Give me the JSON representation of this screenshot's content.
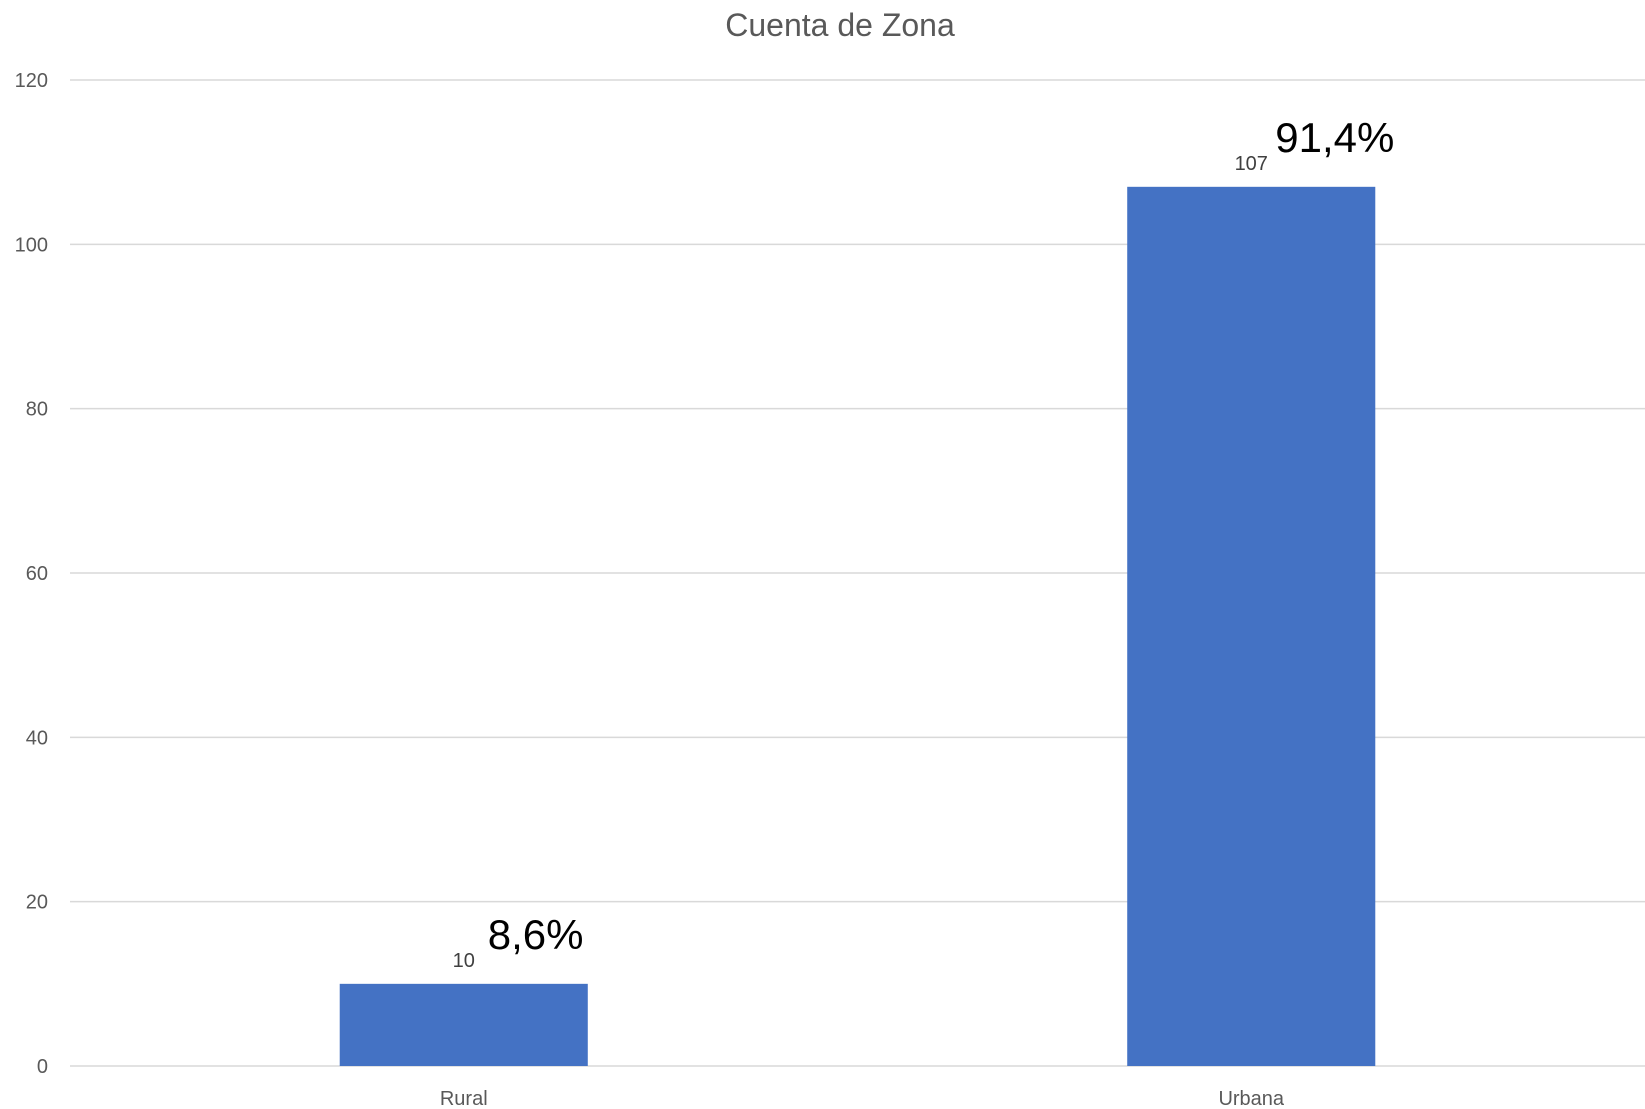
{
  "chart_data": {
    "type": "bar",
    "title": "Cuenta de Zona",
    "categories": [
      "Rural",
      "Urbana"
    ],
    "values": [
      10,
      107
    ],
    "data_labels": [
      "10",
      "107"
    ],
    "percent_labels": [
      "8,6%",
      "91,4%"
    ],
    "ylim": [
      0,
      120
    ],
    "yticks": [
      0,
      20,
      40,
      60,
      80,
      100,
      120
    ],
    "grid": true,
    "legend": "none",
    "xlabel": "",
    "ylabel": "",
    "bar_color": "#4472c4"
  }
}
